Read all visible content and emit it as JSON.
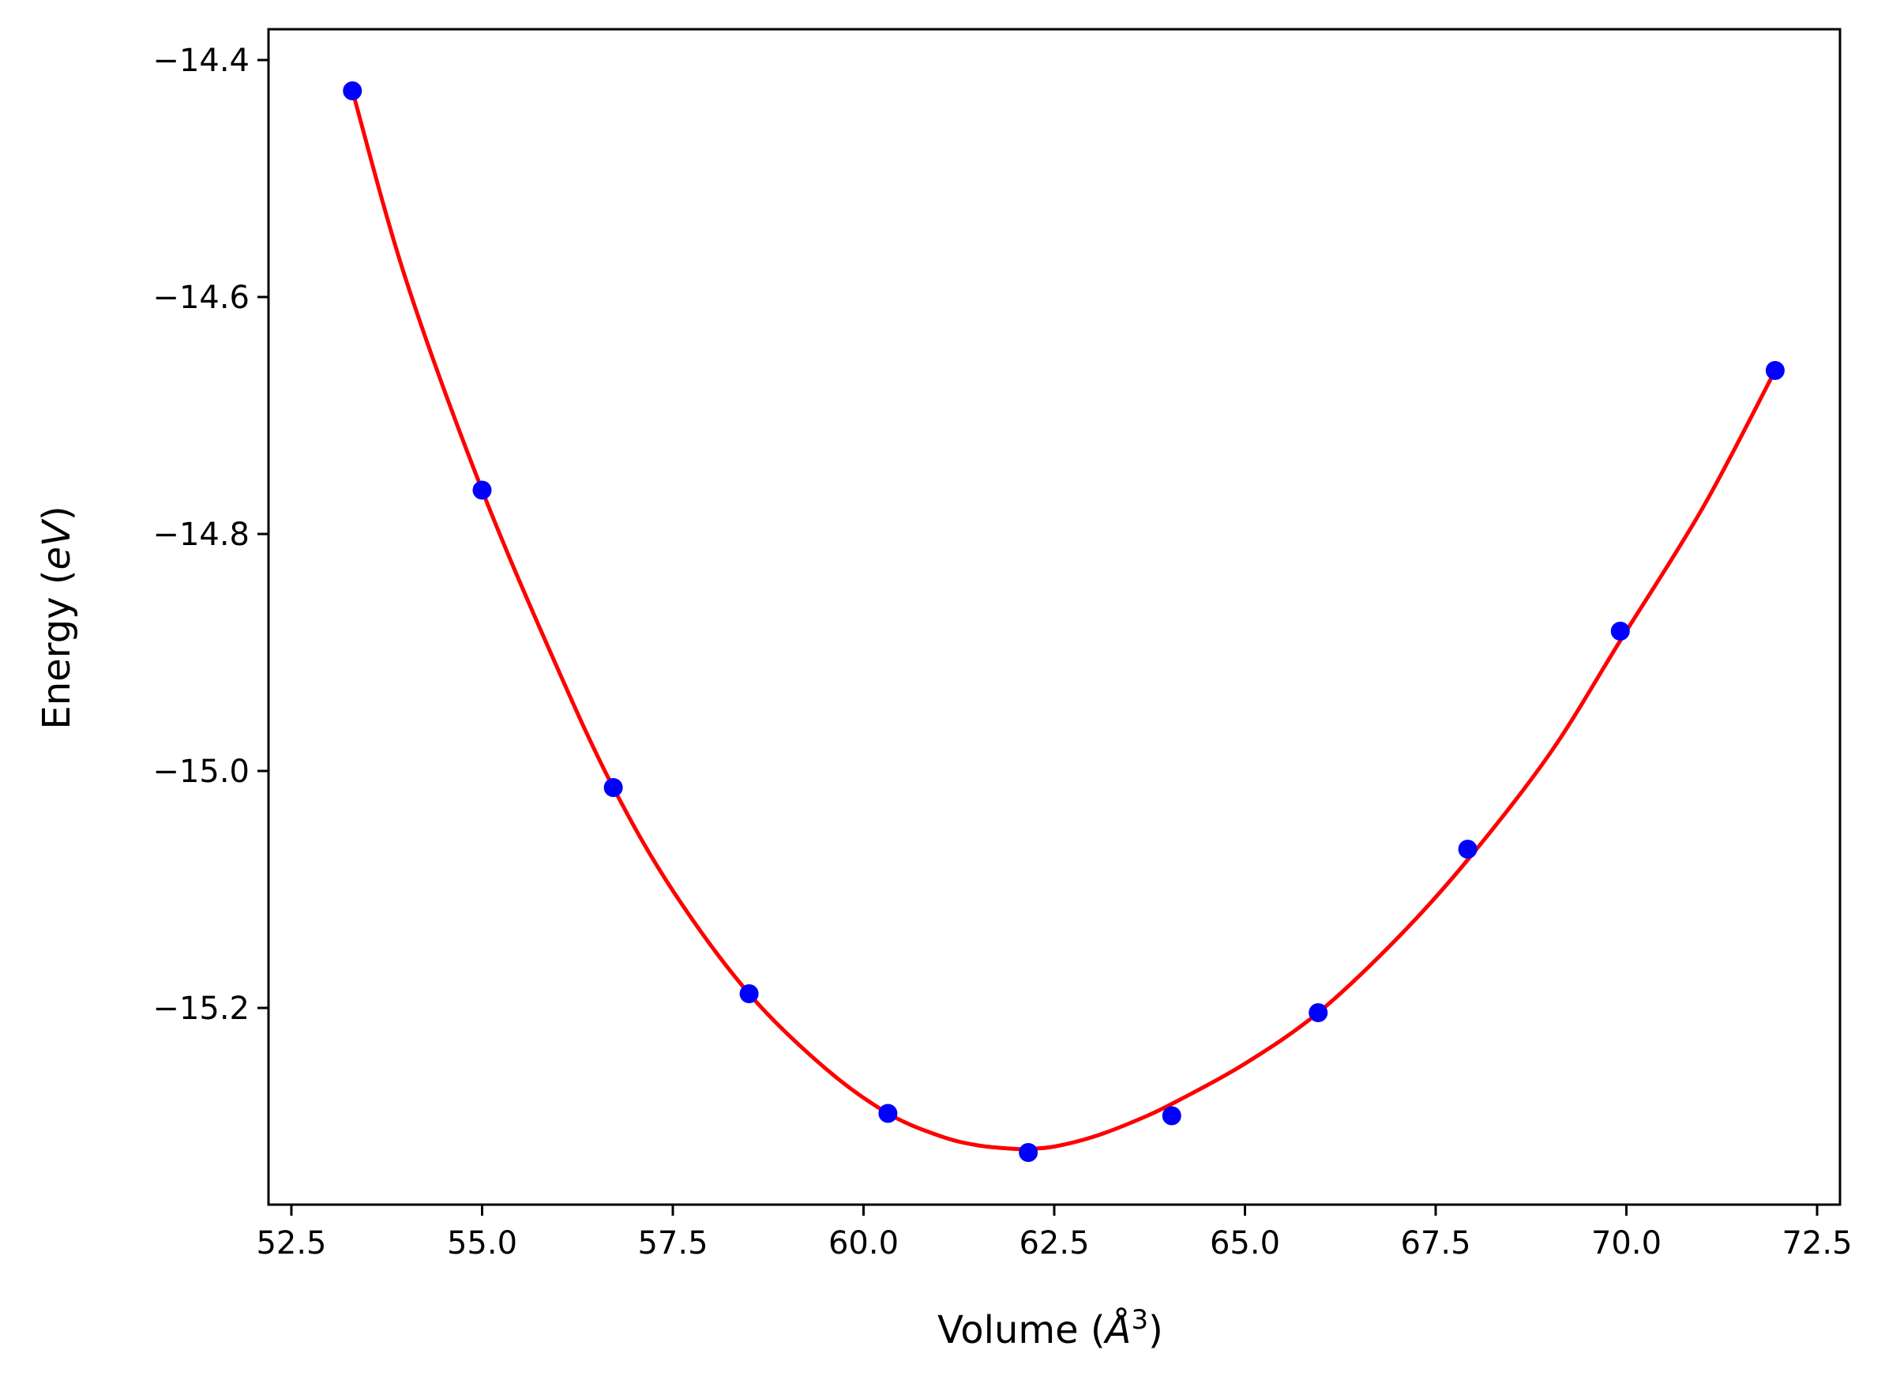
{
  "chart_data": {
    "type": "scatter",
    "title": "",
    "xlabel": {
      "prefix": "Volume (",
      "unit": "Å",
      "sup": "3",
      "suffix": ")"
    },
    "ylabel": {
      "prefix": "Energy (",
      "unit": "eV",
      "suffix": ")"
    },
    "xlim": [
      52.2,
      72.8
    ],
    "ylim": [
      -15.366,
      -14.374
    ],
    "xticks": [
      52.5,
      55.0,
      57.5,
      60.0,
      62.5,
      65.0,
      67.5,
      70.0,
      72.5
    ],
    "xtick_labels": [
      "52.5",
      "55.0",
      "57.5",
      "60.0",
      "62.5",
      "65.0",
      "67.5",
      "70.0",
      "72.5"
    ],
    "yticks": [
      -14.4,
      -14.6,
      -14.8,
      -15.0,
      -15.2
    ],
    "ytick_labels": [
      "−14.4",
      "−14.6",
      "−14.8",
      "−15.0",
      "−15.2"
    ],
    "grid": false,
    "series": [
      {
        "kind": "points",
        "color": "#0000ff",
        "x": [
          53.3,
          55.0,
          56.72,
          58.5,
          60.32,
          62.16,
          64.04,
          65.96,
          67.92,
          69.92,
          71.95
        ],
        "y": [
          -14.426,
          -14.763,
          -15.014,
          -15.188,
          -15.289,
          -15.322,
          -15.291,
          -15.204,
          -15.066,
          -14.882,
          -14.662
        ]
      },
      {
        "kind": "fit-curve",
        "color": "#ff0000",
        "x": [
          53.3,
          54.0,
          55.0,
          56.0,
          56.72,
          57.5,
          58.5,
          59.5,
          60.32,
          61.0,
          61.5,
          62.0,
          62.16,
          62.5,
          63.0,
          63.5,
          64.04,
          65.0,
          65.96,
          67.0,
          67.92,
          69.0,
          69.92,
          71.0,
          71.95
        ],
        "y": [
          -14.426,
          -14.585,
          -14.763,
          -14.915,
          -15.014,
          -15.101,
          -15.188,
          -15.251,
          -15.289,
          -15.308,
          -15.316,
          -15.319,
          -15.319,
          -15.317,
          -15.309,
          -15.297,
          -15.281,
          -15.247,
          -15.204,
          -15.141,
          -15.075,
          -14.985,
          -14.89,
          -14.778,
          -14.662
        ]
      }
    ]
  }
}
